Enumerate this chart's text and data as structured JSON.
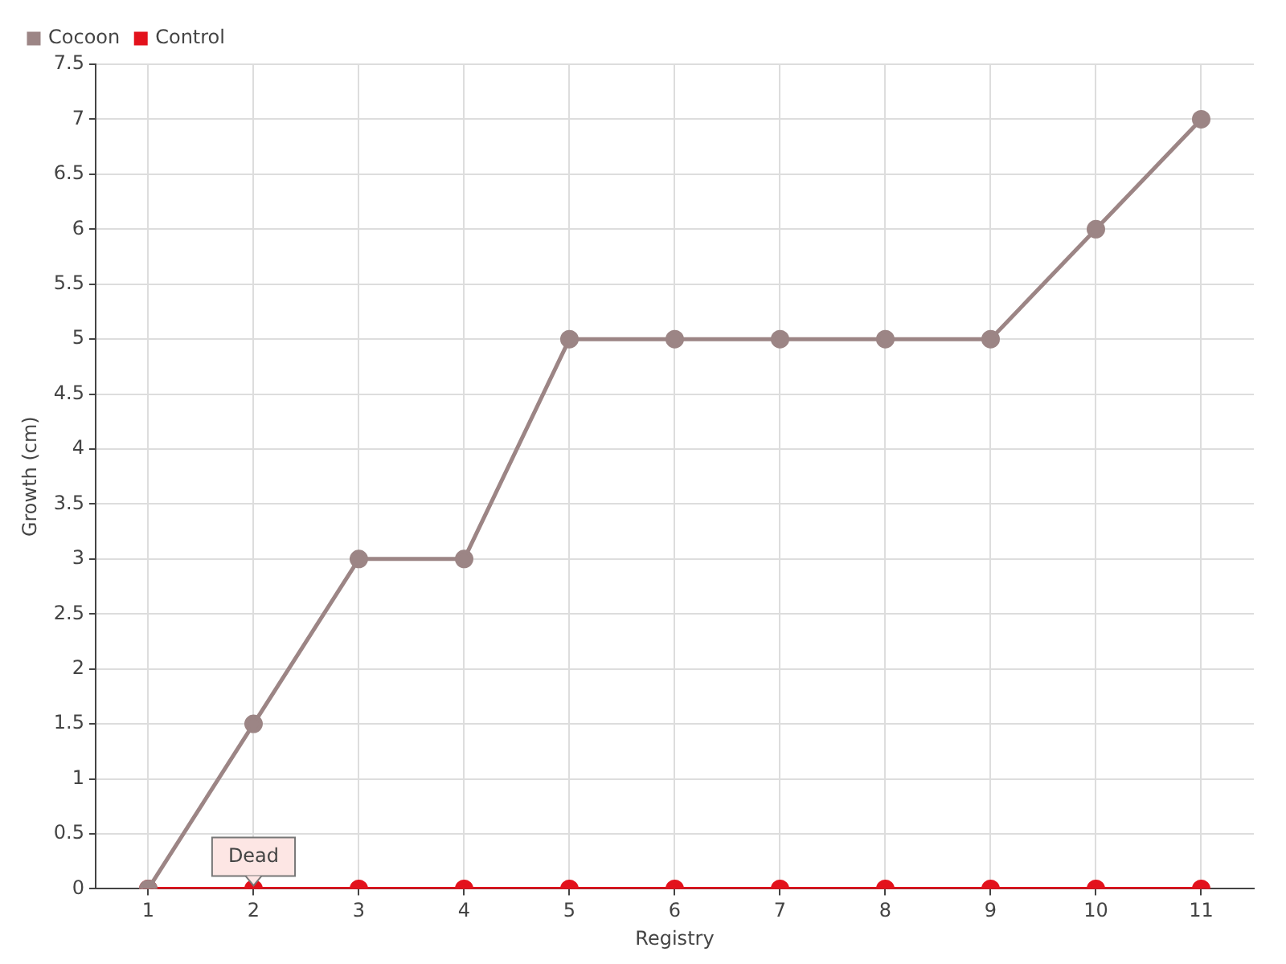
{
  "chart_data": {
    "type": "line",
    "xlabel": "Registry",
    "ylabel": "Growth (cm)",
    "categories": [
      "1",
      "2",
      "3",
      "4",
      "5",
      "6",
      "7",
      "8",
      "9",
      "10",
      "11"
    ],
    "series": [
      {
        "name": "Cocoon",
        "color": "#9c8585",
        "values": [
          0,
          1.5,
          3,
          3,
          5,
          5,
          5,
          5,
          5,
          6,
          7
        ]
      },
      {
        "name": "Control",
        "color": "#e3121c",
        "values": [
          0,
          0,
          0,
          0,
          0,
          0,
          0,
          0,
          0,
          0,
          0
        ]
      }
    ],
    "ylim": [
      0,
      7.5
    ],
    "yticks": [
      0,
      0.5,
      1,
      1.5,
      2,
      2.5,
      3,
      3.5,
      4,
      4.5,
      5,
      5.5,
      6,
      6.5,
      7,
      7.5
    ],
    "grid": true,
    "legend": "top left",
    "marker": "circle",
    "line_style": "solid",
    "annotations": [
      {
        "text": "Dead",
        "x": "2",
        "y": 0
      }
    ]
  }
}
